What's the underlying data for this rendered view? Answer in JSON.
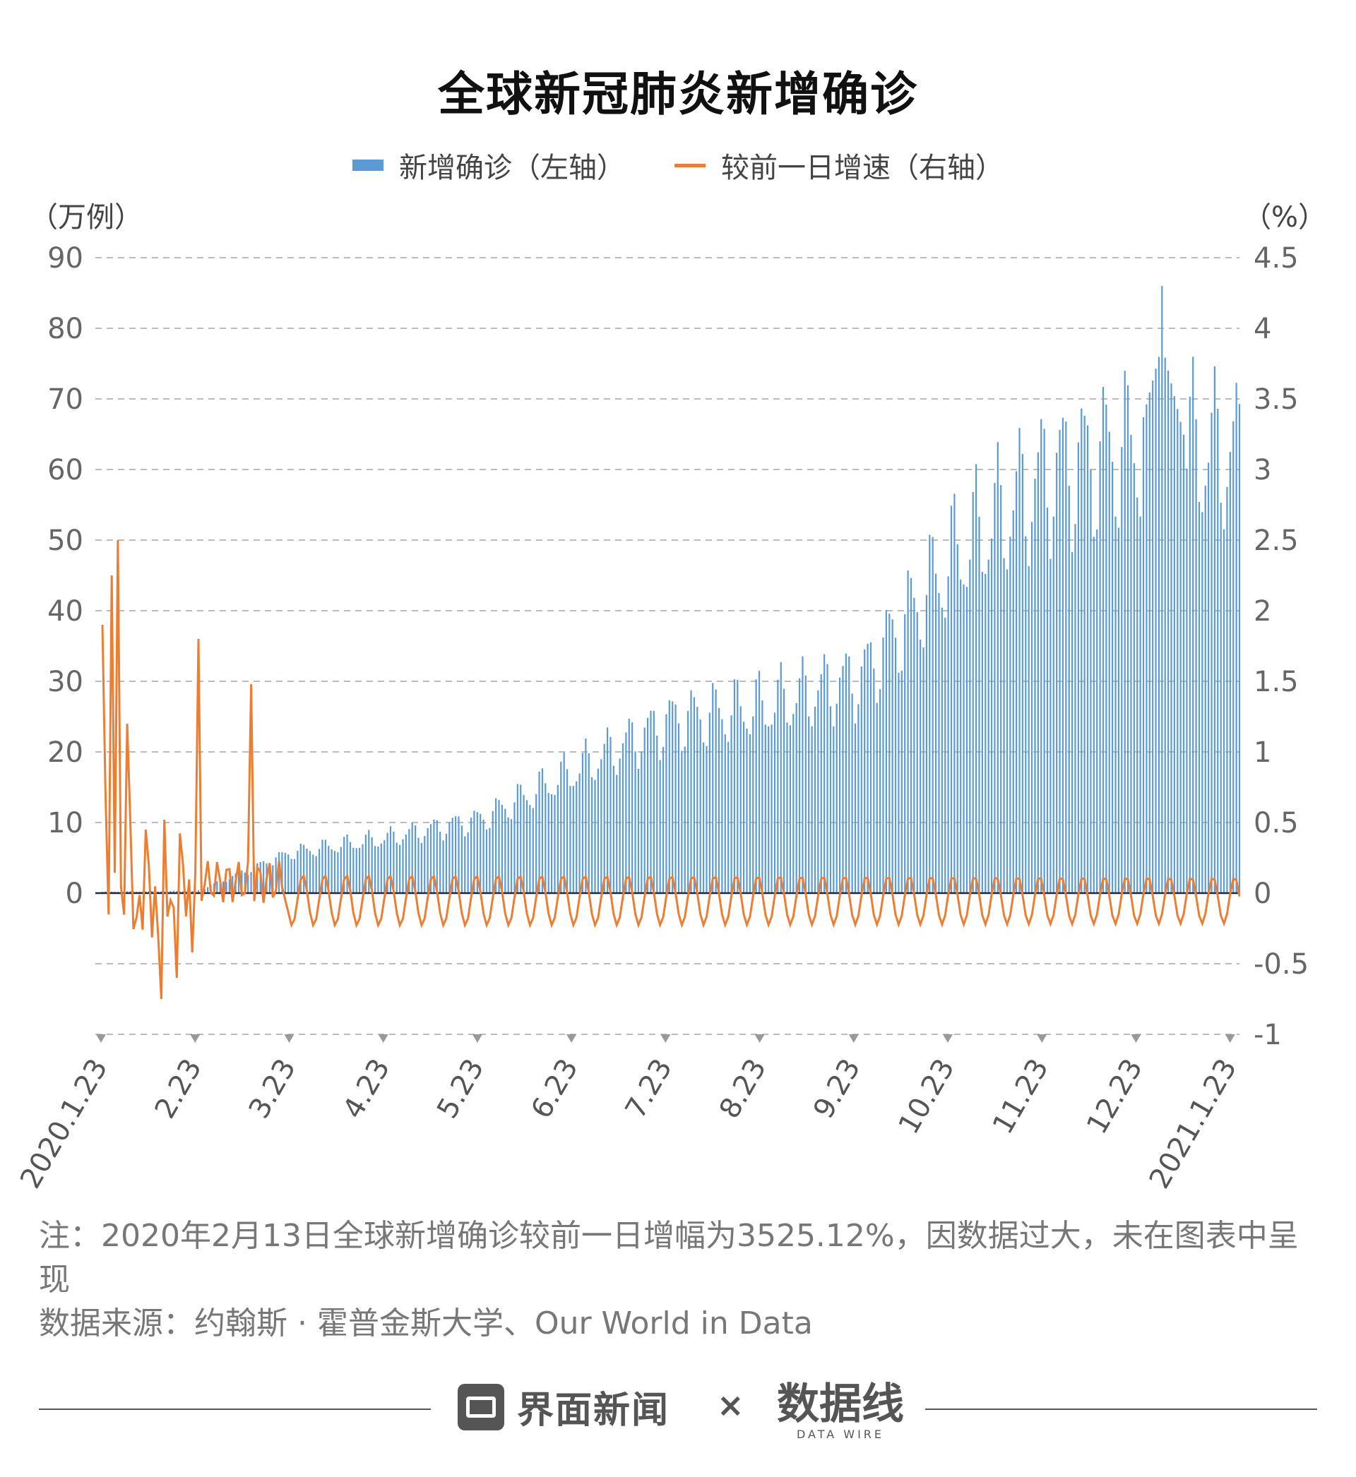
{
  "title": "全球新冠肺炎新增确诊",
  "legend": {
    "bar_label": "新增确诊（左轴）",
    "line_label": "较前一日增速（右轴）"
  },
  "units": {
    "left": "（万例）",
    "right": "（%）"
  },
  "colors": {
    "bar": "#5b9bd5",
    "line": "#ed7d31",
    "grid": "#bbbbbb",
    "zero": "#1a2a44"
  },
  "chart_data": {
    "type": "bar+line",
    "left_axis": {
      "unit": "万例",
      "ylim": [
        -20,
        90
      ],
      "ticks": [
        0,
        10,
        20,
        30,
        40,
        50,
        60,
        70,
        80,
        90
      ]
    },
    "right_axis": {
      "unit": "%",
      "ylim": [
        -1,
        4.5
      ],
      "ticks": [
        "-1",
        "-0.5",
        "0",
        "0.5",
        "1",
        "1.5",
        "2",
        "2.5",
        "3",
        "3.5",
        "4",
        "4.5"
      ]
    },
    "x_ticks": [
      "2020.1.23",
      "2.23",
      "3.23",
      "4.23",
      "5.23",
      "6.23",
      "7.23",
      "8.23",
      "9.23",
      "10.23",
      "11.23",
      "12.23",
      "2021.1.23"
    ],
    "monthly_new_cases_wan": [
      {
        "month": "2020.1.23",
        "avg": 0.2
      },
      {
        "month": "2.23",
        "avg": 0.3
      },
      {
        "month": "3.23",
        "avg": 5.8
      },
      {
        "month": "4.23",
        "avg": 7.8
      },
      {
        "month": "5.23",
        "avg": 10.5
      },
      {
        "month": "6.23",
        "avg": 17.5
      },
      {
        "month": "7.23",
        "avg": 24.5
      },
      {
        "month": "8.23",
        "avg": 26.5
      },
      {
        "month": "9.23",
        "avg": 30.5
      },
      {
        "month": "10.23",
        "avg": 48.0
      },
      {
        "month": "11.23",
        "avg": 59.5
      },
      {
        "month": "12.23",
        "avg": 64.0
      },
      {
        "month": "2021.1.23",
        "avg": 62.0
      }
    ],
    "peak_new_cases_wan": 86,
    "growth_rate_spikes_pct": [
      {
        "date": "2020.1.23",
        "value": 1.9
      },
      {
        "date": "2020.1.28",
        "value": 2.5
      },
      {
        "date": "2020.2.23",
        "value": 1.8
      },
      {
        "date": "2020.3.12",
        "value": 1.48
      }
    ],
    "growth_rate_typical_range_pct": [
      -0.25,
      0.2
    ]
  },
  "note": "注：2020年2月13日全球新增确诊较前一日增幅为3525.12%，因数据过大，未在图表中呈现",
  "source": "数据来源：约翰斯 · 霍普金斯大学、Our World in Data",
  "footer": {
    "brand": "界面新闻",
    "times": "×",
    "partner": "数据线",
    "partner_sub": "DATA WIRE"
  }
}
